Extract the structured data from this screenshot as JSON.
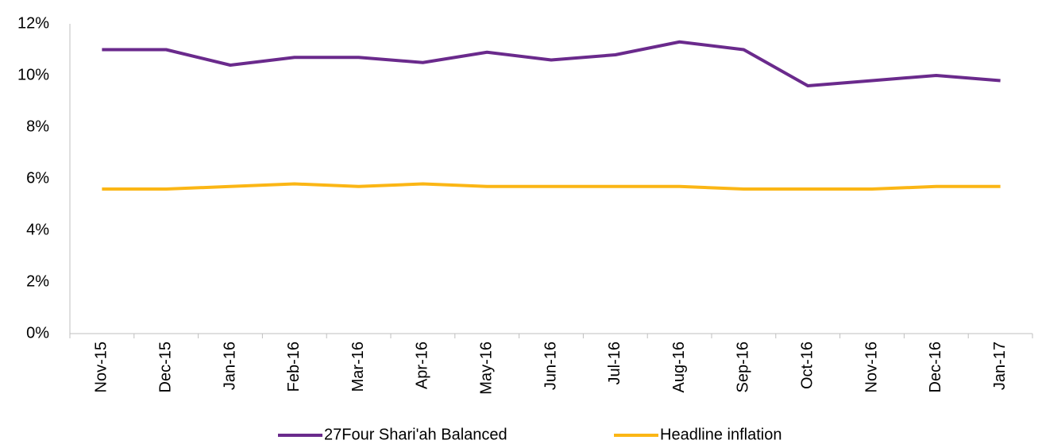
{
  "chart_data": {
    "type": "line",
    "categories": [
      "Nov-15",
      "Dec-15",
      "Jan-16",
      "Feb-16",
      "Mar-16",
      "Apr-16",
      "May-16",
      "Jun-16",
      "Jul-16",
      "Aug-16",
      "Sep-16",
      "Oct-16",
      "Nov-16",
      "Dec-16",
      "Jan-17"
    ],
    "series": [
      {
        "name": "27Four Shari'ah Balanced",
        "color": "#6a2a8c",
        "values": [
          11.0,
          11.0,
          10.4,
          10.7,
          10.7,
          10.5,
          10.9,
          10.6,
          10.8,
          11.3,
          11.0,
          9.6,
          9.8,
          10.0,
          9.8
        ]
      },
      {
        "name": "Headline inflation",
        "color": "#fbb615",
        "values": [
          5.6,
          5.6,
          5.7,
          5.8,
          5.7,
          5.8,
          5.7,
          5.7,
          5.7,
          5.7,
          5.6,
          5.6,
          5.6,
          5.7,
          5.7
        ]
      }
    ],
    "ylim": [
      0,
      12
    ],
    "yticks": [
      {
        "value": 0,
        "label": "0%"
      },
      {
        "value": 2,
        "label": "2%"
      },
      {
        "value": 4,
        "label": "4%"
      },
      {
        "value": 6,
        "label": "6%"
      },
      {
        "value": 8,
        "label": "8%"
      },
      {
        "value": 10,
        "label": "10%"
      },
      {
        "value": 12,
        "label": "12%"
      }
    ],
    "grid": false,
    "legend": "bottom"
  }
}
